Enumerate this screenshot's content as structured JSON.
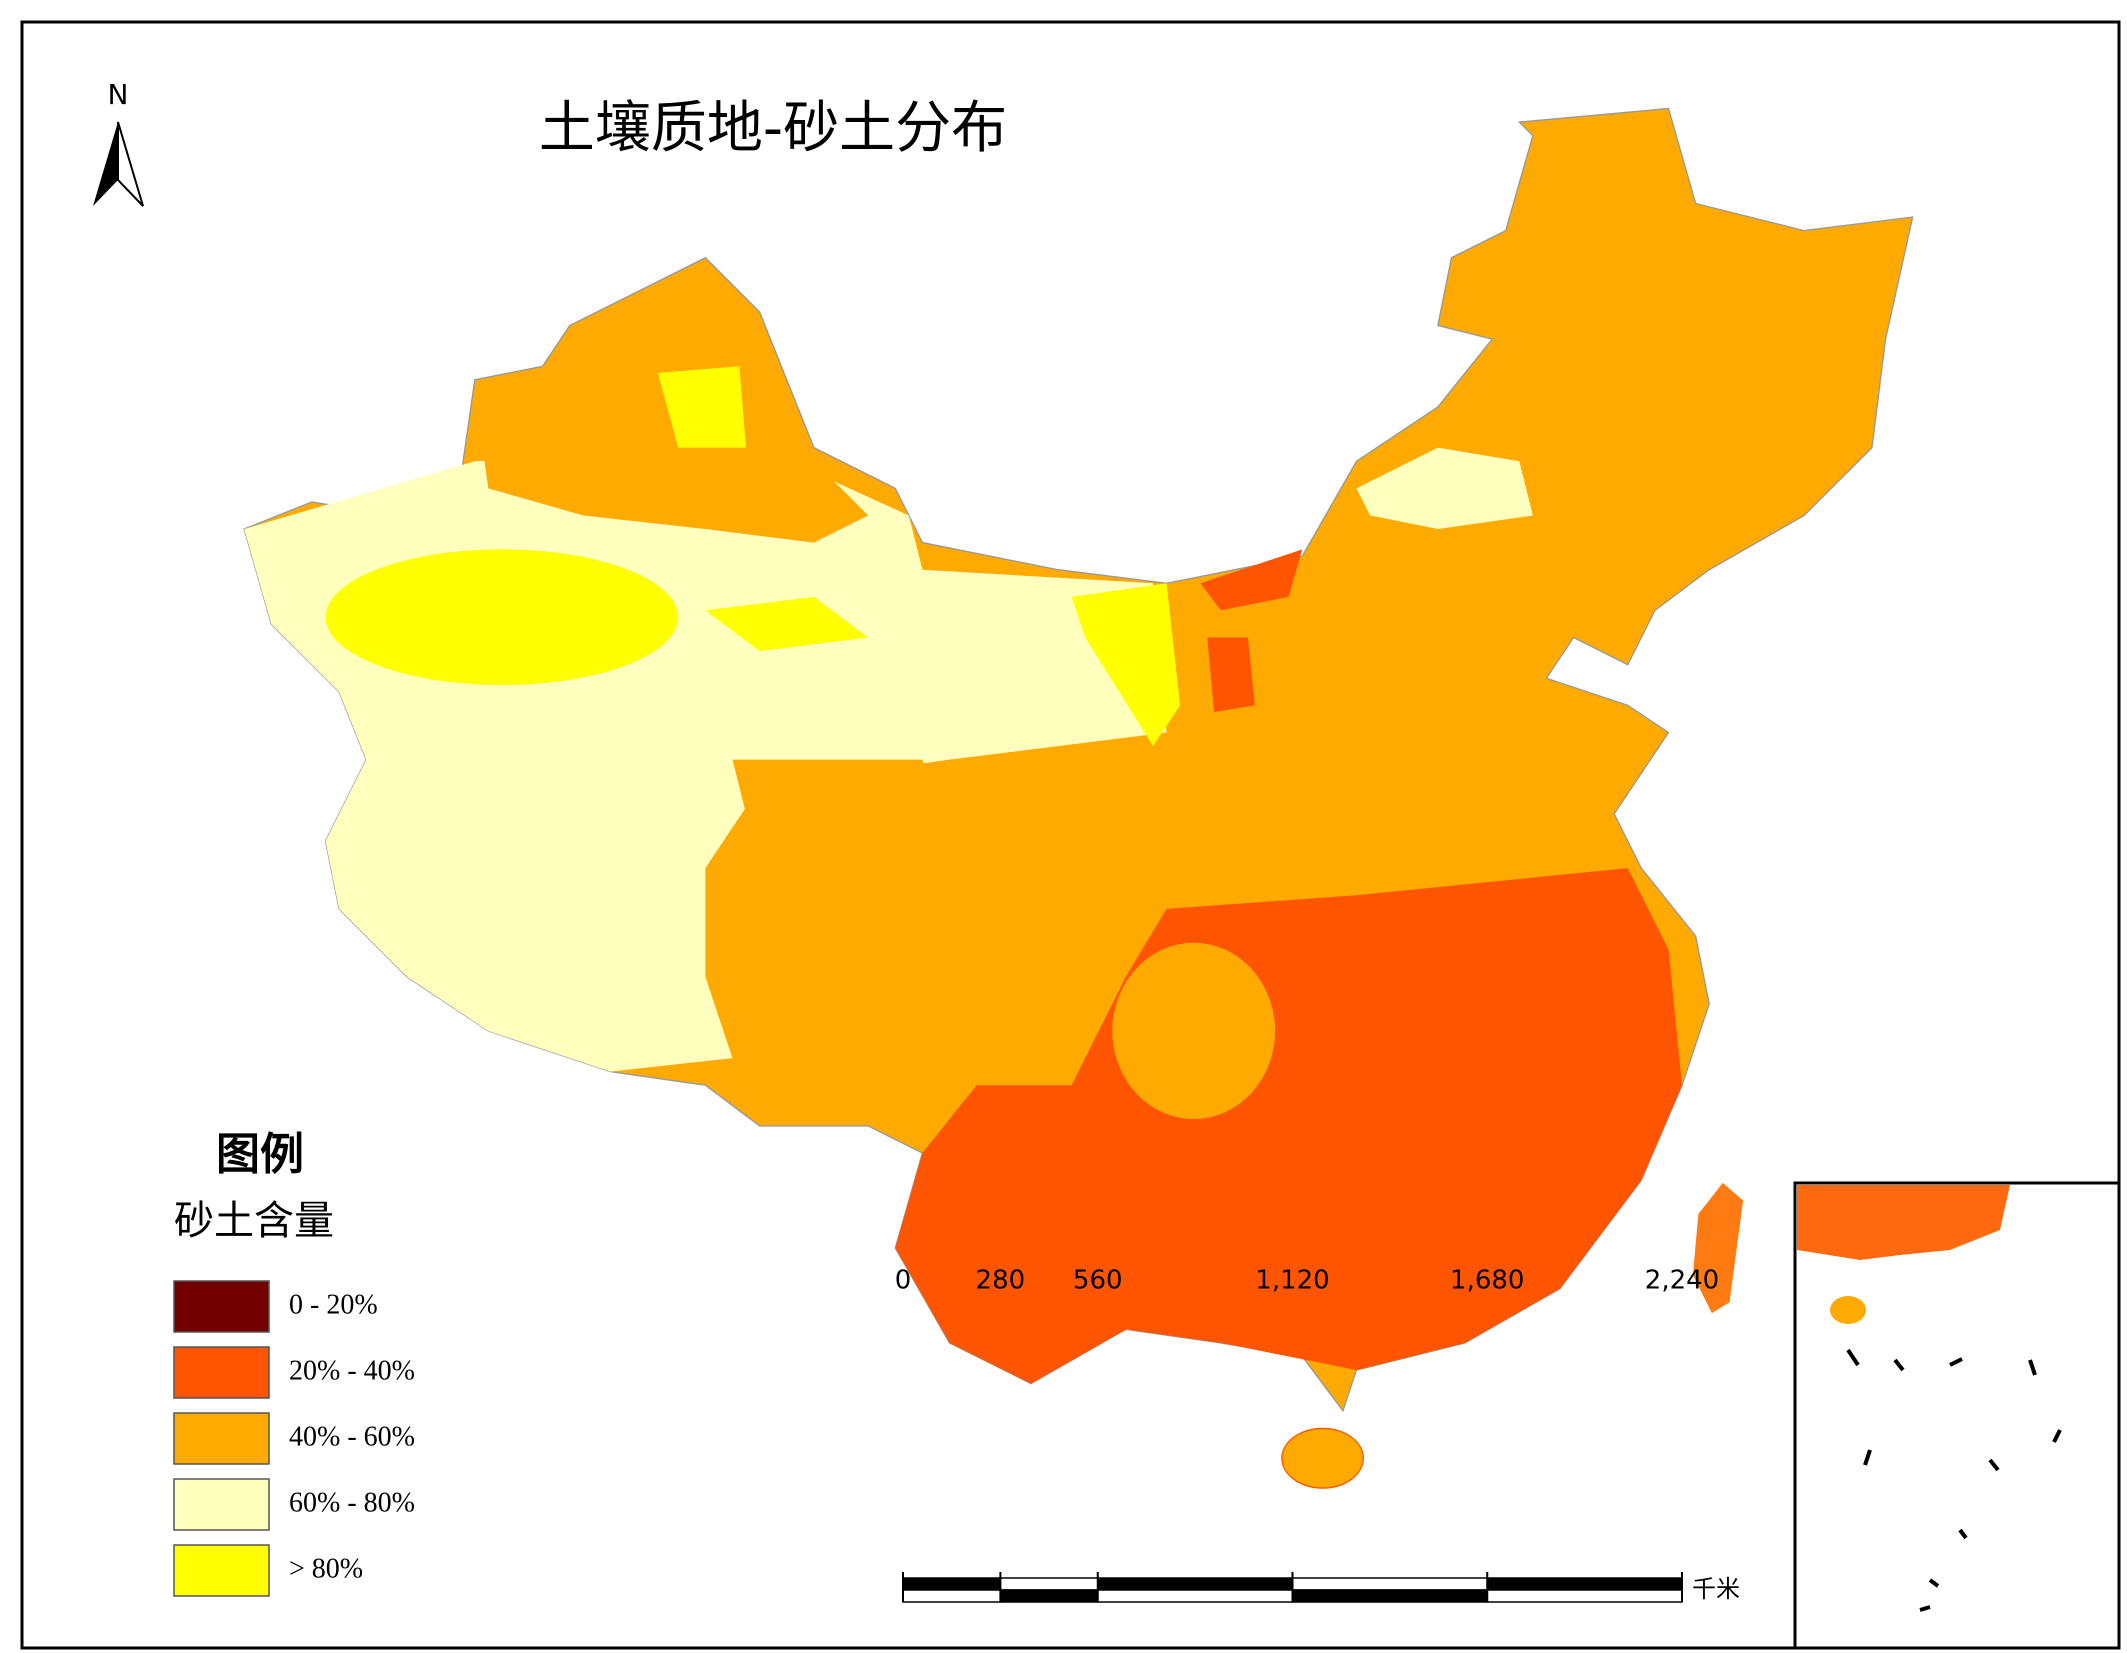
{
  "title": "土壤质地-砂土分布",
  "north_arrow": "N",
  "legend": {
    "title": "图例",
    "subtitle": "砂土含量",
    "items": [
      {
        "label": "0 - 20%",
        "color": "#730000"
      },
      {
        "label": "20% - 40%",
        "color": "#ff5500"
      },
      {
        "label": "40% - 60%",
        "color": "#ffaa00"
      },
      {
        "label": "60% - 80%",
        "color": "#ffffbe"
      },
      {
        "label": "> 80%",
        "color": "#ffff00"
      }
    ]
  },
  "scale_bar": {
    "ticks": [
      0,
      280,
      560,
      {
        "value": 1120,
        "label": "1,120"
      },
      {
        "value": 1680,
        "label": "1,680"
      },
      {
        "value": 2240,
        "label": "2,240"
      }
    ],
    "unit": "千米"
  }
}
